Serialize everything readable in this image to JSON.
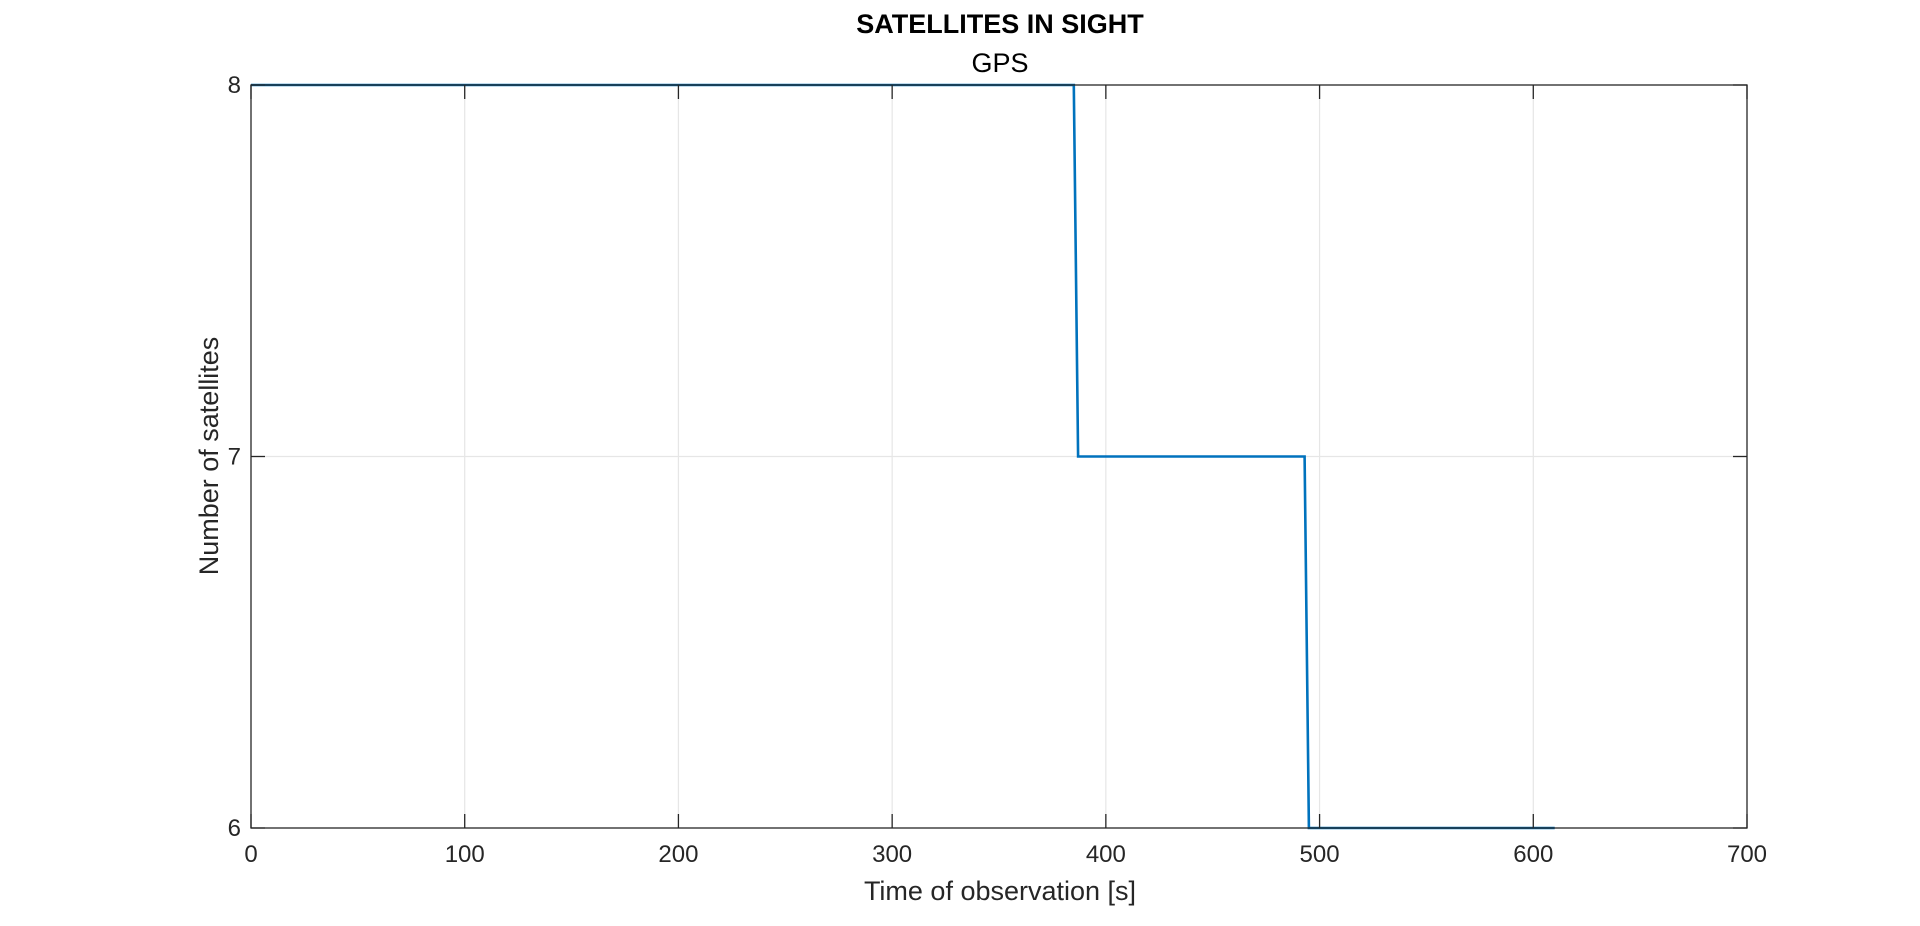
{
  "chart_data": {
    "type": "line",
    "title": "SATELLITES IN SIGHT",
    "subtitle": "GPS",
    "xlabel": "Time of observation [s]",
    "ylabel": "Number of satellites",
    "xlim": [
      0,
      700
    ],
    "ylim": [
      6,
      8
    ],
    "xticks": [
      0,
      100,
      200,
      300,
      400,
      500,
      600,
      700
    ],
    "yticks": [
      6,
      7,
      8
    ],
    "grid": true,
    "series": [
      {
        "color": "#0072BD",
        "x": [
          0,
          385,
          387,
          493,
          495,
          610
        ],
        "y": [
          8,
          8,
          7,
          7,
          6,
          6
        ]
      }
    ]
  }
}
